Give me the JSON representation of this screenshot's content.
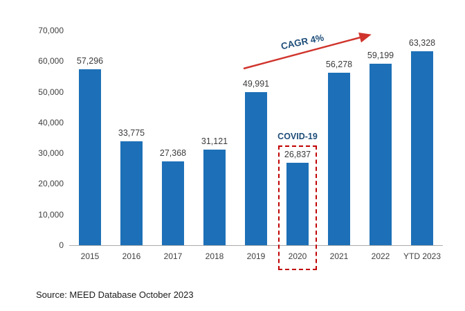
{
  "chart_data": {
    "type": "bar",
    "categories": [
      "2015",
      "2016",
      "2017",
      "2018",
      "2019",
      "2020",
      "2021",
      "2022",
      "YTD 2023"
    ],
    "values": [
      57296,
      33775,
      27368,
      31121,
      49991,
      26837,
      56278,
      59199,
      63328
    ],
    "value_labels": [
      "57,296",
      "33,775",
      "27,368",
      "31,121",
      "49,991",
      "26,837",
      "56,278",
      "59,199",
      "63,328"
    ],
    "title": "",
    "xlabel": "",
    "ylabel": "",
    "ylim": [
      0,
      70000
    ],
    "y_ticks": [
      0,
      10000,
      20000,
      30000,
      40000,
      50000,
      60000,
      70000
    ],
    "y_tick_labels": [
      "0",
      "10,000",
      "20,000",
      "30,000",
      "40,000",
      "50,000",
      "60,000",
      "70,000"
    ],
    "grid": false,
    "legend": false,
    "bar_color": "#1d70b7",
    "highlight_category": "2020"
  },
  "annotations": {
    "cagr_label": "CAGR 4%",
    "covid_label": "COVID-19",
    "arrow_color": "#d0342c",
    "box_color": "#c00000",
    "navy_text_color": "#1f4e79"
  },
  "source": {
    "text": "Source: MEED Database October 2023"
  }
}
